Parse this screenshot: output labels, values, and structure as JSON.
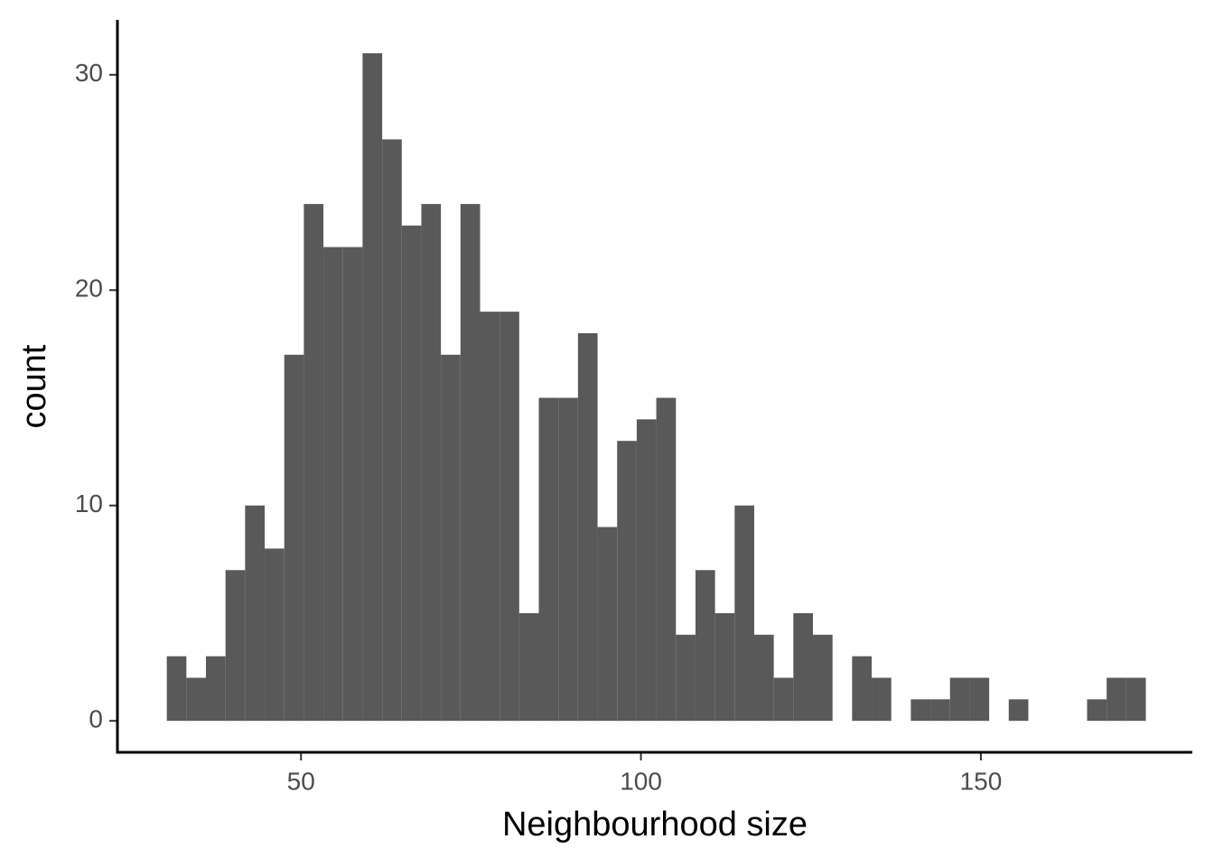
{
  "chart_data": {
    "type": "histogram",
    "x_label": "Neighbourhood size",
    "y_label": "count",
    "bins": [
      30.26,
      33.14,
      36.02,
      38.9,
      41.78,
      44.66,
      47.54,
      50.42,
      53.3,
      56.18,
      59.06,
      61.94,
      64.82,
      67.7,
      70.58,
      73.46,
      76.34,
      79.22,
      82.1,
      84.98,
      87.86,
      90.74,
      93.62,
      96.5,
      99.38,
      102.26,
      105.14,
      108.02,
      110.9,
      113.78,
      116.66,
      119.54,
      122.42,
      125.3,
      128.18,
      131.06,
      133.94,
      136.82,
      139.7,
      142.58,
      145.46,
      148.34,
      151.22,
      154.1,
      156.98,
      159.86,
      162.74,
      165.62,
      168.5,
      171.38,
      174.26
    ],
    "values": [
      3,
      2,
      3,
      7,
      10,
      8,
      17,
      24,
      22,
      22,
      31,
      27,
      23,
      24,
      17,
      24,
      19,
      19,
      5,
      15,
      15,
      18,
      9,
      13,
      14,
      15,
      4,
      7,
      5,
      10,
      4,
      2,
      5,
      4,
      0,
      3,
      2,
      0,
      1,
      1,
      2,
      2,
      0,
      1,
      0,
      0,
      0,
      1,
      2,
      2
    ],
    "color": "#595959",
    "xlim": [
      23,
      181.1
    ],
    "xticks": [
      50,
      100,
      150
    ],
    "ylim": [
      -1.46,
      32.55
    ],
    "yticks": [
      0,
      10,
      20,
      30
    ]
  }
}
